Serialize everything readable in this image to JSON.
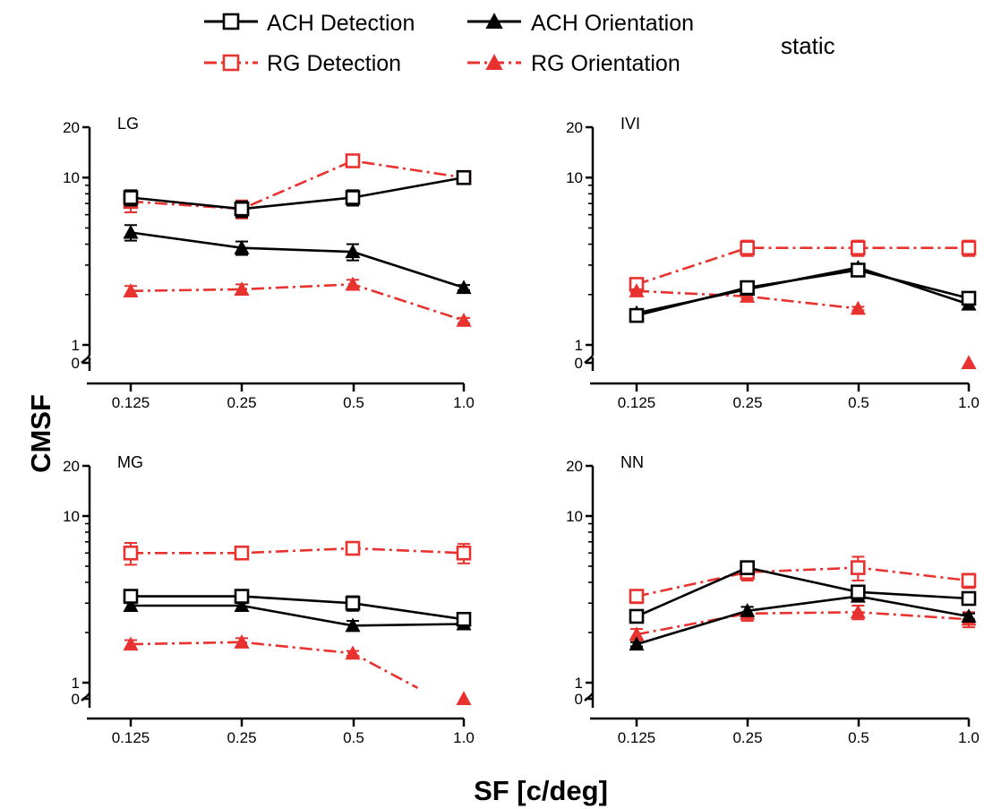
{
  "condition_label": "static",
  "legend": [
    {
      "label": "ACH Detection",
      "series": "ach_det"
    },
    {
      "label": "ACH Orientation",
      "series": "ach_ori"
    },
    {
      "label": "RG Detection",
      "series": "rg_det"
    },
    {
      "label": "RG Orientation",
      "series": "rg_ori"
    }
  ],
  "styles": {
    "ach_det": {
      "color": "#000000",
      "marker": "square-open",
      "dash": "solid"
    },
    "ach_ori": {
      "color": "#000000",
      "marker": "triangle-filled",
      "dash": "solid"
    },
    "rg_det": {
      "color": "#e8322f",
      "marker": "square-open",
      "dash": "dash-dot"
    },
    "rg_ori": {
      "color": "#e8322f",
      "marker": "triangle-filled",
      "dash": "dash-dot"
    }
  },
  "chart_data": {
    "type": "line",
    "xlabel": "SF [c/deg]",
    "ylabel": "CMSF",
    "x": [
      0.125,
      0.25,
      0.5,
      1.0
    ],
    "x_tick_labels": [
      "0.125",
      "0.25",
      "0.5",
      "1.0"
    ],
    "yscale": "log",
    "ylim": [
      1,
      20
    ],
    "y_tick_labels": [
      "0",
      "1",
      "10",
      "20"
    ],
    "y_axis_break": true,
    "grid": false,
    "legend_position": "top-center",
    "panels": [
      {
        "title": "LG",
        "series": [
          {
            "name": "ACH Detection",
            "key": "ach_det",
            "values": [
              7.6,
              6.5,
              7.6,
              10.0
            ],
            "errors": [
              0.8,
              0.7,
              0.8,
              0.3
            ]
          },
          {
            "name": "ACH Orientation",
            "key": "ach_ori",
            "values": [
              4.7,
              3.8,
              3.6,
              2.2
            ],
            "errors": [
              0.5,
              0.35,
              0.4,
              0.08
            ]
          },
          {
            "name": "RG Detection",
            "key": "rg_det",
            "values": [
              7.2,
              6.5,
              12.6,
              10.0
            ],
            "errors": [
              1.0,
              0.8,
              1.0,
              0.3
            ]
          },
          {
            "name": "RG Orientation",
            "key": "rg_ori",
            "values": [
              2.1,
              2.15,
              2.3,
              1.4
            ],
            "errors": [
              0.15,
              0.15,
              0.15,
              0.05
            ]
          }
        ]
      },
      {
        "title": "IVI",
        "series": [
          {
            "name": "ACH Detection",
            "key": "ach_det",
            "values": [
              1.5,
              2.2,
              2.8,
              1.9
            ],
            "errors": [
              0.08,
              0.12,
              0.2,
              0.12
            ]
          },
          {
            "name": "ACH Orientation",
            "key": "ach_ori",
            "values": [
              1.55,
              2.15,
              2.9,
              1.75
            ],
            "errors": [
              0.06,
              0.1,
              0.15,
              0.1
            ]
          },
          {
            "name": "RG Detection",
            "key": "rg_det",
            "values": [
              2.3,
              3.8,
              3.8,
              3.8
            ],
            "errors": [
              0.15,
              0.4,
              0.4,
              0.4
            ]
          },
          {
            "name": "RG Orientation",
            "key": "rg_ori",
            "values": [
              2.1,
              1.95,
              1.65,
              null
            ],
            "errors": [
              0.05,
              0.05,
              0.04,
              0
            ],
            "zero_points": [
              1.0
            ]
          }
        ]
      },
      {
        "title": "MG",
        "series": [
          {
            "name": "ACH Detection",
            "key": "ach_det",
            "values": [
              3.3,
              3.3,
              3.0,
              2.4
            ],
            "errors": [
              0.3,
              0.3,
              0.3,
              0.2
            ]
          },
          {
            "name": "ACH Orientation",
            "key": "ach_ori",
            "values": [
              2.9,
              2.9,
              2.2,
              2.25
            ],
            "errors": [
              0.2,
              0.2,
              0.15,
              0.15
            ]
          },
          {
            "name": "RG Detection",
            "key": "rg_det",
            "values": [
              6.0,
              6.0,
              6.4,
              6.0
            ],
            "errors": [
              0.9,
              0.5,
              0.5,
              0.8
            ]
          },
          {
            "name": "RG Orientation",
            "key": "rg_ori",
            "values": [
              1.7,
              1.75,
              1.5,
              null
            ],
            "errors": [
              0.1,
              0.1,
              0.05,
              0
            ],
            "trail_to_x": 0.75,
            "trail_to_y": 0.93,
            "zero_points": [
              1.0
            ]
          }
        ]
      },
      {
        "title": "NN",
        "series": [
          {
            "name": "ACH Detection",
            "key": "ach_det",
            "values": [
              2.5,
              4.9,
              3.5,
              3.2
            ],
            "errors": [
              0.15,
              0.35,
              0.25,
              0.25
            ]
          },
          {
            "name": "ACH Orientation",
            "key": "ach_ori",
            "values": [
              1.7,
              2.7,
              3.3,
              2.5
            ],
            "errors": [
              0.05,
              0.15,
              0.2,
              0.1
            ]
          },
          {
            "name": "RG Detection",
            "key": "rg_det",
            "values": [
              3.3,
              4.6,
              4.9,
              4.1
            ],
            "errors": [
              0.3,
              0.5,
              0.8,
              0.4
            ]
          },
          {
            "name": "RG Orientation",
            "key": "rg_ori",
            "values": [
              1.95,
              2.6,
              2.65,
              2.4
            ],
            "errors": [
              0.15,
              0.25,
              0.25,
              0.25
            ]
          }
        ]
      }
    ]
  }
}
